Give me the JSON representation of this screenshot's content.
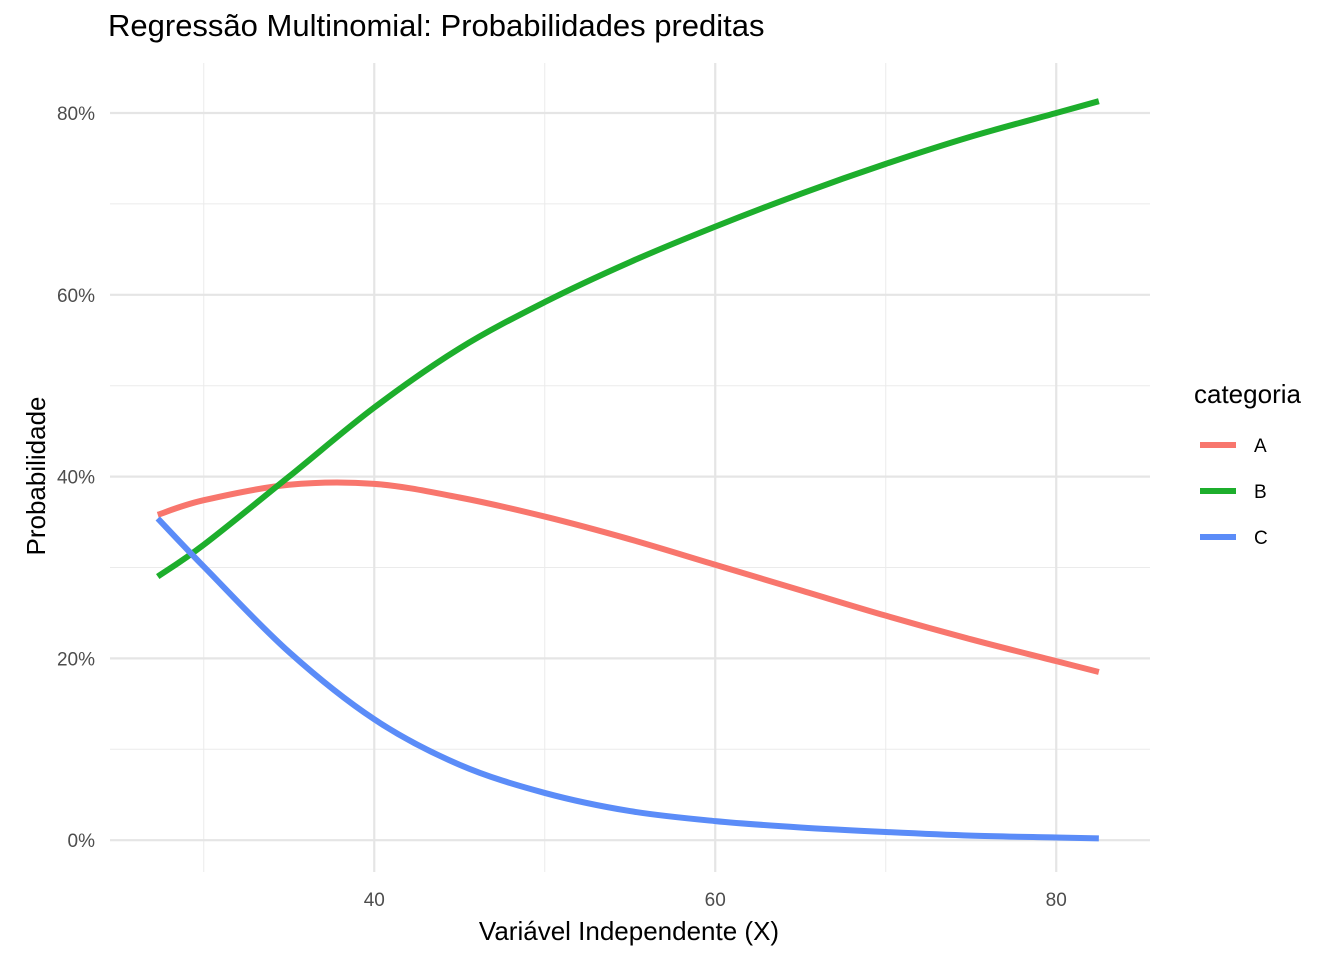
{
  "chart_data": {
    "type": "line",
    "title": "Regressão Multinomial: Probabilidades preditas",
    "xlabel": "Variável Independente (X)",
    "ylabel": "Probabilidade",
    "xlim": [
      24.5,
      85.5
    ],
    "ylim": [
      -0.035,
      0.855
    ],
    "x_major_ticks": [
      40,
      60,
      80
    ],
    "x_minor_ticks": [
      30,
      50,
      70
    ],
    "y_major_ticks": [
      0,
      0.2,
      0.4,
      0.6,
      0.8
    ],
    "y_minor_ticks": [
      0.1,
      0.3,
      0.5,
      0.7
    ],
    "x_tick_labels": [
      "40",
      "60",
      "80"
    ],
    "y_tick_labels": [
      "0%",
      "20%",
      "40%",
      "60%",
      "80%"
    ],
    "grid": true,
    "legend": {
      "title": "categoria",
      "placement": "right"
    },
    "x": [
      27.3,
      30,
      35,
      40,
      45,
      50,
      55,
      60,
      65,
      70,
      75,
      80,
      82.5
    ],
    "series": [
      {
        "name": "A",
        "color": "#F8766D",
        "values": [
          0.358,
          0.374,
          0.391,
          0.392,
          0.377,
          0.356,
          0.331,
          0.303,
          0.275,
          0.247,
          0.221,
          0.197,
          0.185
        ]
      },
      {
        "name": "B",
        "color": "#1DAE2C",
        "values": [
          0.29,
          0.325,
          0.4,
          0.476,
          0.541,
          0.592,
          0.636,
          0.675,
          0.711,
          0.744,
          0.774,
          0.8,
          0.813
        ]
      },
      {
        "name": "C",
        "color": "#5B8CF8",
        "values": [
          0.354,
          0.301,
          0.207,
          0.133,
          0.083,
          0.052,
          0.032,
          0.021,
          0.014,
          0.009,
          0.005,
          0.003,
          0.002
        ]
      }
    ]
  }
}
